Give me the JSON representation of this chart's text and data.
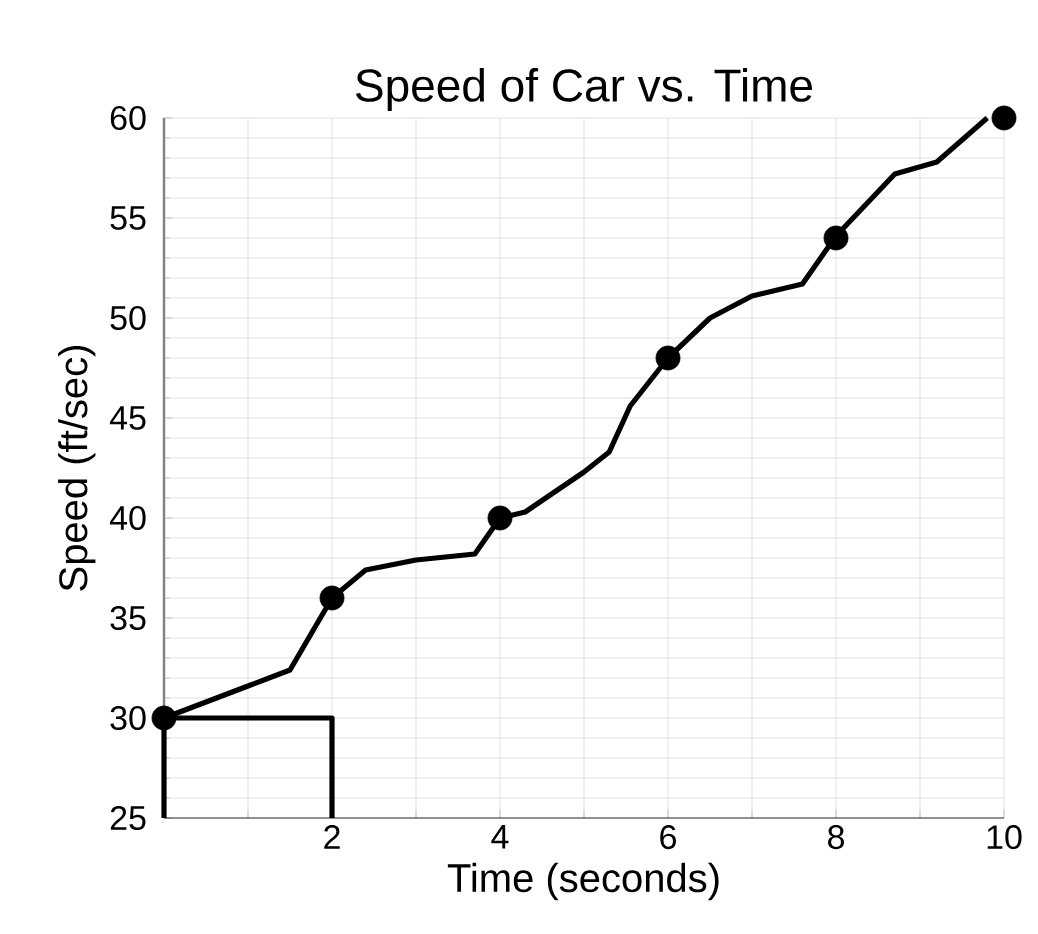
{
  "chart_data": {
    "type": "line",
    "title": "Speed of Car vs. Time",
    "xlabel": "Time (seconds)",
    "ylabel": "Speed (ft/sec)",
    "xlim": [
      0,
      10
    ],
    "ylim": [
      25,
      60
    ],
    "xticks": [
      {
        "value": 1,
        "label": null
      },
      2,
      {
        "value": 3,
        "label": null
      },
      4,
      {
        "value": 5,
        "label": null
      },
      6,
      {
        "value": 7,
        "label": null
      },
      8,
      {
        "value": 9,
        "label": null
      },
      10
    ],
    "yticks": [
      25,
      30,
      35,
      40,
      45,
      50,
      55,
      60
    ],
    "grid": true,
    "series": [
      {
        "type": "line",
        "color": "#000000",
        "line_style": "solid",
        "x": [
          0,
          0.5,
          1.0,
          1.5,
          2.0,
          2.4,
          3.0,
          3.7,
          4.0,
          4.3,
          5.0,
          5.3,
          5.55,
          6.0,
          6.5,
          7.0,
          7.6,
          8.0,
          8.7,
          9.2,
          9.8
        ],
        "values": [
          30,
          30.8,
          31.6,
          32.4,
          36,
          37.4,
          37.9,
          38.2,
          40,
          40.3,
          42.3,
          43.3,
          45.6,
          48,
          50,
          51.1,
          51.7,
          54.1,
          57.2,
          57.8,
          60
        ]
      },
      {
        "type": "scatter",
        "color": "#000000",
        "marker": "circle",
        "x": [
          0,
          2,
          4,
          6,
          8,
          10
        ],
        "values": [
          30,
          36,
          40,
          48,
          54,
          60
        ]
      },
      {
        "type": "line",
        "color": "#000000",
        "line_style": "solid",
        "x": [
          0,
          0,
          2,
          2
        ],
        "values": [
          25,
          30,
          30,
          25
        ]
      }
    ]
  }
}
